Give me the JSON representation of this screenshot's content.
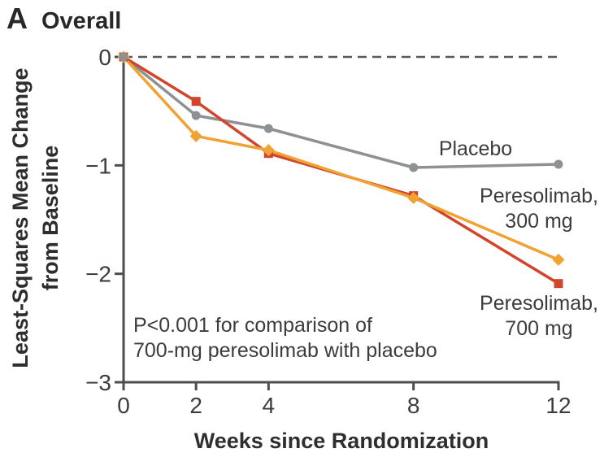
{
  "panel": {
    "letter": "A",
    "title": "Overall"
  },
  "chart_data": {
    "type": "line",
    "title": "Overall",
    "xlabel": "Weeks since Randomization",
    "ylabel": "Least-Squares Mean Change\nfrom Baseline",
    "x": [
      0,
      2,
      4,
      8,
      12
    ],
    "x_tick_labels": [
      "0",
      "2",
      "4",
      "8",
      "12"
    ],
    "y_ticks": [
      0,
      -1,
      -2,
      -3
    ],
    "y_tick_labels": [
      "0",
      "−1",
      "−2",
      "−3"
    ],
    "xlim": [
      0,
      12
    ],
    "ylim": [
      -3,
      0
    ],
    "grid": false,
    "zero_reference_line": "dashed",
    "legend_position": "inline-right",
    "series": [
      {
        "name": "Placebo",
        "marker": "circle",
        "color": "#8E9193",
        "values": [
          0,
          -0.54,
          -0.66,
          -1.02,
          -0.99
        ]
      },
      {
        "name": "Peresolimab, 300 mg",
        "marker": "diamond",
        "color": "#F0A232",
        "values": [
          0,
          -0.73,
          -0.86,
          -1.3,
          -1.87
        ]
      },
      {
        "name": "Peresolimab, 700 mg",
        "marker": "square",
        "color": "#D0452B",
        "values": [
          0,
          -0.41,
          -0.89,
          -1.28,
          -2.09
        ]
      }
    ],
    "series_labels": [
      {
        "text": "Placebo"
      },
      {
        "text": "Peresolimab,\n300 mg"
      },
      {
        "text": "Peresolimab,\n700 mg"
      }
    ],
    "annotation": "P<0.001 for comparison of\n700-mg peresolimab with placebo",
    "colors": {
      "axis": "#4C4D4F",
      "tick_text": "#3B3C3E",
      "dashed_line": "#58595B"
    }
  }
}
